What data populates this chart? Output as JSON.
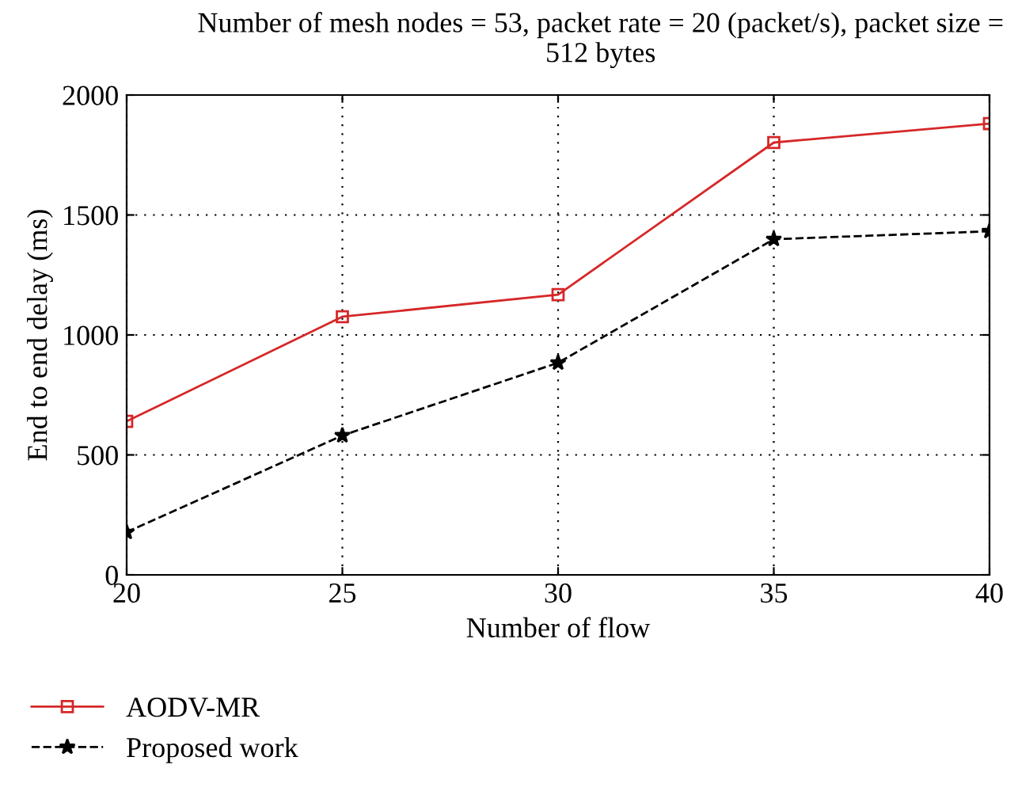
{
  "chart_data": {
    "type": "line",
    "title": "Number of mesh nodes = 53, packet rate = 20 (packet/s), packet size = 512 bytes",
    "xlabel": "Number of flow",
    "ylabel": "End to end delay (ms)",
    "x": [
      20,
      25,
      30,
      35,
      40
    ],
    "series": [
      {
        "name": "AODV-MR",
        "color": "#d62728",
        "marker": "square",
        "line_style": "solid",
        "values": [
          640,
          1076,
          1168,
          1802,
          1881
        ]
      },
      {
        "name": "Proposed work",
        "color": "#000000",
        "marker": "star",
        "line_style": "dashed",
        "values": [
          178,
          581,
          884,
          1399,
          1432
        ]
      }
    ],
    "xlim": [
      20,
      40
    ],
    "xticks": [
      20,
      25,
      30,
      35,
      40
    ],
    "ylim": [
      0,
      2000
    ],
    "yticks": [
      0,
      500,
      1000,
      1500,
      2000
    ],
    "grid": true,
    "legend": "bottom left"
  }
}
